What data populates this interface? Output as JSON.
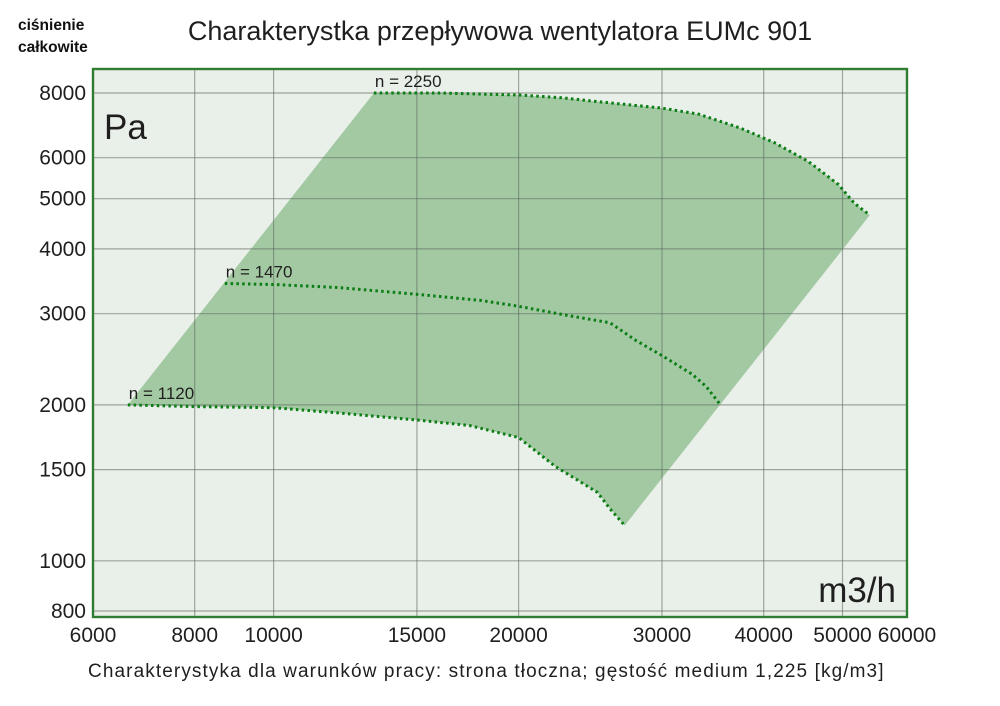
{
  "page": {
    "y_axis_title_line1": "ciśnienie",
    "y_axis_title_line2": "całkowite"
  },
  "chart_data": {
    "type": "area",
    "title": "Charakterystka przepływowa wentylatora EUMc 901",
    "caption": "Charakterystyka dla warunków pracy: strona tłoczna; gęstość medium 1,225 [kg/m3]",
    "ylabel_unit": "Pa",
    "xlabel_unit": "m3/h",
    "x_scale": "log",
    "y_scale": "log",
    "xlim": [
      6000,
      60000
    ],
    "ylim": [
      800,
      8000
    ],
    "x_ticks": [
      6000,
      8000,
      10000,
      15000,
      20000,
      30000,
      40000,
      50000,
      60000
    ],
    "x_gridlines": [
      8000,
      10000,
      15000,
      20000,
      30000,
      40000,
      50000
    ],
    "y_ticks": [
      800,
      1000,
      1500,
      2000,
      3000,
      4000,
      5000,
      6000,
      8000
    ],
    "grid": true,
    "region_note": "shaded operating area bounded above by n = 2250 curve and below by n = 1120 curve",
    "series": [
      {
        "name": "n = 2250",
        "points": [
          [
            13280,
            8000
          ],
          [
            16000,
            8000
          ],
          [
            20000,
            7930
          ],
          [
            22600,
            7830
          ],
          [
            25200,
            7690
          ],
          [
            30000,
            7480
          ],
          [
            33300,
            7280
          ],
          [
            37400,
            6850
          ],
          [
            41200,
            6420
          ],
          [
            45400,
            5900
          ],
          [
            49400,
            5330
          ],
          [
            51700,
            4900
          ],
          [
            54000,
            4650
          ]
        ]
      },
      {
        "name": "n = 1470",
        "points": [
          [
            8710,
            3430
          ],
          [
            10000,
            3415
          ],
          [
            12000,
            3370
          ],
          [
            15000,
            3270
          ],
          [
            18000,
            3180
          ],
          [
            20000,
            3100
          ],
          [
            22600,
            2990
          ],
          [
            25900,
            2880
          ],
          [
            27900,
            2660
          ],
          [
            30000,
            2490
          ],
          [
            32700,
            2290
          ],
          [
            34000,
            2170
          ],
          [
            35400,
            2000
          ]
        ]
      },
      {
        "name": "n = 1120",
        "points": [
          [
            6620,
            2000
          ],
          [
            8000,
            1985
          ],
          [
            10000,
            1975
          ],
          [
            12000,
            1930
          ],
          [
            15000,
            1870
          ],
          [
            17400,
            1825
          ],
          [
            20000,
            1730
          ],
          [
            22200,
            1520
          ],
          [
            24000,
            1410
          ],
          [
            25000,
            1355
          ],
          [
            25900,
            1260
          ],
          [
            27000,
            1170
          ]
        ]
      }
    ],
    "colors": {
      "region_fill": "#a3c9a3",
      "plot_bg": "#e9efe9",
      "grid": "#5c685c",
      "curve": "#0a7d14",
      "border": "#2e7d32",
      "text": "#1f1f1f"
    }
  }
}
